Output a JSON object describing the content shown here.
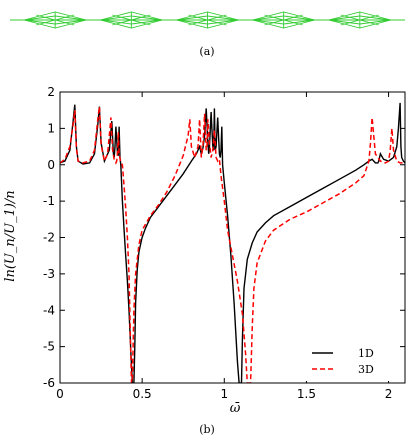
{
  "figure": {
    "panel_a_caption": "(a)",
    "panel_b_caption": "(b)",
    "chain_cells": 5,
    "chain_color": "#33cc33"
  },
  "chart_data": {
    "type": "line",
    "title": "",
    "xlabel": "ω̄",
    "ylabel": "ln(U_n/U_1)/n",
    "xlim": [
      0,
      2.1
    ],
    "ylim": [
      -6,
      2
    ],
    "xticks": [
      "0",
      "0.5",
      "1",
      "1.5",
      "2"
    ],
    "yticks": [
      "2",
      "1",
      "0",
      "-1",
      "-2",
      "-3",
      "-4",
      "-5",
      "-6"
    ],
    "grid": false,
    "legend_position": "bottom-right",
    "series": [
      {
        "name": "1D",
        "color": "#000000",
        "dash": "solid",
        "x": [
          0.0,
          0.03,
          0.06,
          0.08,
          0.09,
          0.1,
          0.11,
          0.14,
          0.18,
          0.21,
          0.23,
          0.24,
          0.25,
          0.27,
          0.3,
          0.315,
          0.325,
          0.33,
          0.335,
          0.34,
          0.35,
          0.355,
          0.36,
          0.365,
          0.37,
          0.375,
          0.38,
          0.39,
          0.4,
          0.41,
          0.42,
          0.43,
          0.44,
          0.445,
          0.45,
          0.455,
          0.46,
          0.47,
          0.48,
          0.5,
          0.52,
          0.55,
          0.6,
          0.65,
          0.7,
          0.75,
          0.8,
          0.83,
          0.85,
          0.86,
          0.87,
          0.88,
          0.89,
          0.9,
          0.905,
          0.91,
          0.92,
          0.93,
          0.935,
          0.94,
          0.945,
          0.95,
          0.96,
          0.97,
          0.975,
          0.98,
          0.985,
          0.99,
          1.0,
          1.02,
          1.04,
          1.06,
          1.08,
          1.09,
          1.1,
          1.105,
          1.11,
          1.12,
          1.14,
          1.17,
          1.2,
          1.25,
          1.3,
          1.4,
          1.5,
          1.6,
          1.7,
          1.8,
          1.85,
          1.88,
          1.9,
          1.91,
          1.92,
          1.93,
          1.935,
          1.94,
          1.95,
          1.97,
          2.0,
          2.03,
          2.05,
          2.06,
          2.07,
          2.075,
          2.08,
          2.09,
          2.1
        ],
        "y": [
          0.05,
          0.1,
          0.4,
          1.2,
          1.65,
          0.5,
          0.1,
          0.02,
          0.05,
          0.3,
          1.1,
          1.6,
          0.6,
          0.1,
          0.4,
          1.2,
          0.3,
          0.2,
          0.5,
          1.05,
          0.3,
          0.25,
          1.05,
          0.2,
          0.0,
          -0.5,
          -1.0,
          -1.8,
          -2.5,
          -3.2,
          -4.0,
          -5.0,
          -6.0,
          -6.0,
          -6.0,
          -5.0,
          -3.8,
          -2.9,
          -2.4,
          -2.0,
          -1.75,
          -1.45,
          -1.15,
          -0.85,
          -0.55,
          -0.25,
          0.1,
          0.3,
          0.5,
          0.3,
          0.45,
          0.8,
          1.55,
          0.6,
          0.3,
          0.5,
          1.45,
          0.5,
          0.4,
          1.55,
          0.4,
          0.5,
          1.3,
          0.3,
          0.2,
          0.4,
          1.05,
          0.0,
          -0.5,
          -1.4,
          -2.5,
          -3.8,
          -5.4,
          -6.0,
          -6.0,
          -6.0,
          -4.8,
          -3.4,
          -2.6,
          -2.15,
          -1.85,
          -1.6,
          -1.4,
          -1.15,
          -0.9,
          -0.65,
          -0.4,
          -0.15,
          0.0,
          0.1,
          0.15,
          0.1,
          0.05,
          0.05,
          0.05,
          0.1,
          0.3,
          0.15,
          0.1,
          0.2,
          0.5,
          1.0,
          1.7,
          0.5,
          0.2,
          0.1,
          0.05
        ]
      },
      {
        "name": "3D",
        "color": "#ff0000",
        "dash": "dashed",
        "x": [
          0.0,
          0.03,
          0.06,
          0.08,
          0.09,
          0.1,
          0.11,
          0.14,
          0.18,
          0.21,
          0.23,
          0.24,
          0.25,
          0.27,
          0.29,
          0.3,
          0.31,
          0.32,
          0.33,
          0.34,
          0.345,
          0.35,
          0.355,
          0.36,
          0.37,
          0.38,
          0.39,
          0.4,
          0.41,
          0.42,
          0.425,
          0.43,
          0.435,
          0.44,
          0.45,
          0.46,
          0.48,
          0.5,
          0.55,
          0.6,
          0.65,
          0.7,
          0.75,
          0.78,
          0.79,
          0.8,
          0.82,
          0.84,
          0.85,
          0.86,
          0.87,
          0.88,
          0.89,
          0.895,
          0.9,
          0.91,
          0.92,
          0.93,
          0.94,
          0.95,
          0.96,
          0.97,
          0.98,
          1.0,
          1.02,
          1.05,
          1.08,
          1.11,
          1.13,
          1.14,
          1.15,
          1.16,
          1.17,
          1.18,
          1.2,
          1.25,
          1.3,
          1.4,
          1.5,
          1.6,
          1.7,
          1.8,
          1.85,
          1.88,
          1.89,
          1.9,
          1.92,
          1.95,
          1.98,
          2.0,
          2.01,
          2.02,
          2.03,
          2.05,
          2.07,
          2.1
        ],
        "y": [
          0.05,
          0.15,
          0.5,
          1.1,
          1.5,
          0.45,
          0.1,
          0.05,
          0.1,
          0.4,
          1.25,
          1.6,
          0.55,
          0.1,
          0.3,
          0.8,
          1.3,
          0.4,
          0.15,
          0.05,
          0.1,
          0.3,
          0.9,
          0.3,
          0.05,
          0.0,
          -0.6,
          -1.2,
          -2.0,
          -3.0,
          -4.0,
          -5.0,
          -6.0,
          -6.0,
          -4.0,
          -3.0,
          -2.2,
          -1.8,
          -1.4,
          -1.1,
          -0.75,
          -0.3,
          0.25,
          0.8,
          1.25,
          0.5,
          0.2,
          0.5,
          1.25,
          0.2,
          0.5,
          1.4,
          0.4,
          0.5,
          1.25,
          0.6,
          0.2,
          0.4,
          0.95,
          0.2,
          0.1,
          0.15,
          -0.3,
          -1.0,
          -1.8,
          -2.5,
          -3.2,
          -4.1,
          -5.2,
          -6.0,
          -6.0,
          -6.0,
          -4.5,
          -3.4,
          -2.7,
          -2.1,
          -1.8,
          -1.5,
          -1.3,
          -1.05,
          -0.8,
          -0.5,
          -0.3,
          0.1,
          0.6,
          1.3,
          0.3,
          0.1,
          0.05,
          0.1,
          0.4,
          1.0,
          0.4,
          0.1,
          0.05,
          0.05
        ]
      }
    ]
  }
}
